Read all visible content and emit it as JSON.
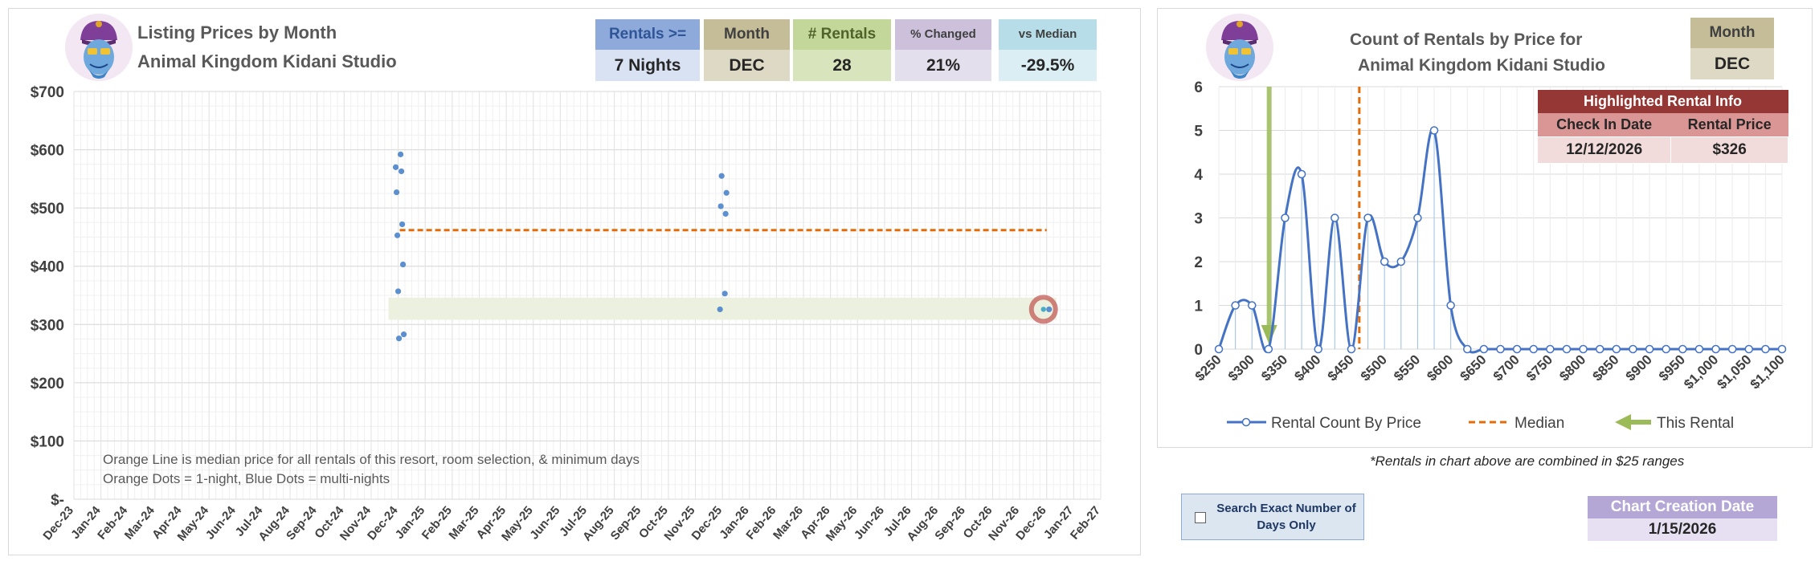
{
  "left_chart": {
    "title_line1": "Listing Prices by Month",
    "title_line2": "Animal Kingdom Kidani Studio",
    "stats": [
      {
        "label": "Rentals >=",
        "value": "7 Nights",
        "head_color": "#8eaadb",
        "val_color": "#d9e2f3"
      },
      {
        "label": "Month",
        "value": "DEC",
        "head_color": "#c4bd97",
        "val_color": "#ddd9c4"
      },
      {
        "label": "# Rentals",
        "value": "28",
        "head_color": "#c4d79b",
        "val_color": "#d8e4bc"
      },
      {
        "label": "% Changed",
        "value": "21%",
        "head_color": "#ccc0da",
        "val_color": "#e4dfec"
      },
      {
        "label": "vs Median",
        "value": "-29.5%",
        "head_color": "#b7dee8",
        "val_color": "#daeef3"
      }
    ],
    "note_line1": "Orange Line is median price for all rentals of this resort, room selection, & minimum days",
    "note_line2": "Orange Dots = 1-night, Blue Dots = multi-nights"
  },
  "right_chart": {
    "title_line1": "Count of Rentals by Price for",
    "title_line2": "Animal Kingdom Kidani Studio",
    "month_label": "Month",
    "month_value": "DEC",
    "info": {
      "title": "Highlighted Rental Info",
      "col1": "Check In Date",
      "col2": "Rental Price",
      "check_in": "12/12/2026",
      "price": "$326"
    },
    "legend": [
      "Rental Count By Price",
      "Median",
      "This Rental"
    ]
  },
  "footnote": "*Rentals in chart above are combined in $25 ranges",
  "search_exact_label": "Search Exact Number of Days Only",
  "creation": {
    "label": "Chart Creation Date",
    "value": "1/15/2026"
  },
  "colors": {
    "series": "#4472c4",
    "point": "#5b8fd0",
    "median": "#e36c09",
    "band": "#ebf1de",
    "this_rental": "#9bbb59",
    "highlight_ring": "#c0504d"
  },
  "chart_data": [
    {
      "type": "scatter",
      "ylim": [
        0,
        700
      ],
      "y_ticks": [
        "$-",
        "$100",
        "$200",
        "$300",
        "$400",
        "$500",
        "$600",
        "$700"
      ],
      "y_tick_values": [
        0,
        100,
        200,
        300,
        400,
        500,
        600,
        700
      ],
      "x_ticks": [
        "Dec-23",
        "Jan-24",
        "Feb-24",
        "Mar-24",
        "Apr-24",
        "May-24",
        "Jun-24",
        "Jul-24",
        "Aug-24",
        "Sep-24",
        "Oct-24",
        "Nov-24",
        "Dec-24",
        "Jan-25",
        "Feb-25",
        "Mar-25",
        "Apr-25",
        "May-25",
        "Jun-25",
        "Jul-25",
        "Aug-25",
        "Sep-25",
        "Oct-25",
        "Nov-25",
        "Dec-25",
        "Jan-26",
        "Feb-26",
        "Mar-26",
        "Apr-26",
        "May-26",
        "Jun-26",
        "Jul-26",
        "Aug-26",
        "Sep-26",
        "Oct-26",
        "Nov-26",
        "Dec-26",
        "Jan-27",
        "Feb-27"
      ],
      "points": [
        {
          "x": "Dec-24",
          "y": 592
        },
        {
          "x": "Dec-24",
          "y": 570
        },
        {
          "x": "Dec-24",
          "y": 563
        },
        {
          "x": "Dec-24",
          "y": 527
        },
        {
          "x": "Dec-24",
          "y": 472
        },
        {
          "x": "Dec-24",
          "y": 453
        },
        {
          "x": "Dec-24",
          "y": 403
        },
        {
          "x": "Dec-24",
          "y": 357
        },
        {
          "x": "Dec-24",
          "y": 283
        },
        {
          "x": "Dec-24",
          "y": 276
        },
        {
          "x": "Dec-25",
          "y": 353
        },
        {
          "x": "Dec-25",
          "y": 326
        },
        {
          "x": "Dec-25",
          "y": 490
        },
        {
          "x": "Dec-25",
          "y": 503
        },
        {
          "x": "Dec-25",
          "y": 526
        },
        {
          "x": "Dec-25",
          "y": 555
        },
        {
          "x": "Dec-26",
          "y": 326
        }
      ],
      "median": 462,
      "median_range": [
        "Dec-24",
        "Dec-26"
      ],
      "band": [
        308,
        346
      ],
      "highlight": {
        "x": "Dec-26",
        "y": 326
      }
    },
    {
      "type": "line",
      "ylim": [
        0,
        6
      ],
      "y_ticks": [
        0,
        1,
        2,
        3,
        4,
        5,
        6
      ],
      "x": [
        "$250",
        "$275",
        "$300",
        "$325",
        "$350",
        "$375",
        "$400",
        "$425",
        "$450",
        "$475",
        "$500",
        "$525",
        "$550",
        "$575",
        "$600",
        "$625",
        "$650",
        "$675",
        "$700",
        "$725",
        "$750",
        "$775",
        "$800",
        "$825",
        "$850",
        "$875",
        "$900",
        "$925",
        "$950",
        "$975",
        "$1,000",
        "$1,025",
        "$1,050",
        "$1,075",
        "$1,100"
      ],
      "x_tick_labels": [
        "$250",
        "$300",
        "$350",
        "$400",
        "$450",
        "$500",
        "$550",
        "$600",
        "$650",
        "$700",
        "$750",
        "$800",
        "$850",
        "$900",
        "$950",
        "$1,000",
        "$1,050",
        "$1,100"
      ],
      "series": [
        {
          "name": "Rental Count By Price",
          "values": [
            0,
            1,
            1,
            0,
            3,
            4,
            0,
            3,
            0,
            3,
            2,
            2,
            3,
            5,
            1,
            0,
            0,
            0,
            0,
            0,
            0,
            0,
            0,
            0,
            0,
            0,
            0,
            0,
            0,
            0,
            0,
            0,
            0,
            0,
            0
          ]
        }
      ],
      "median": 462,
      "this_rental": 326
    }
  ]
}
